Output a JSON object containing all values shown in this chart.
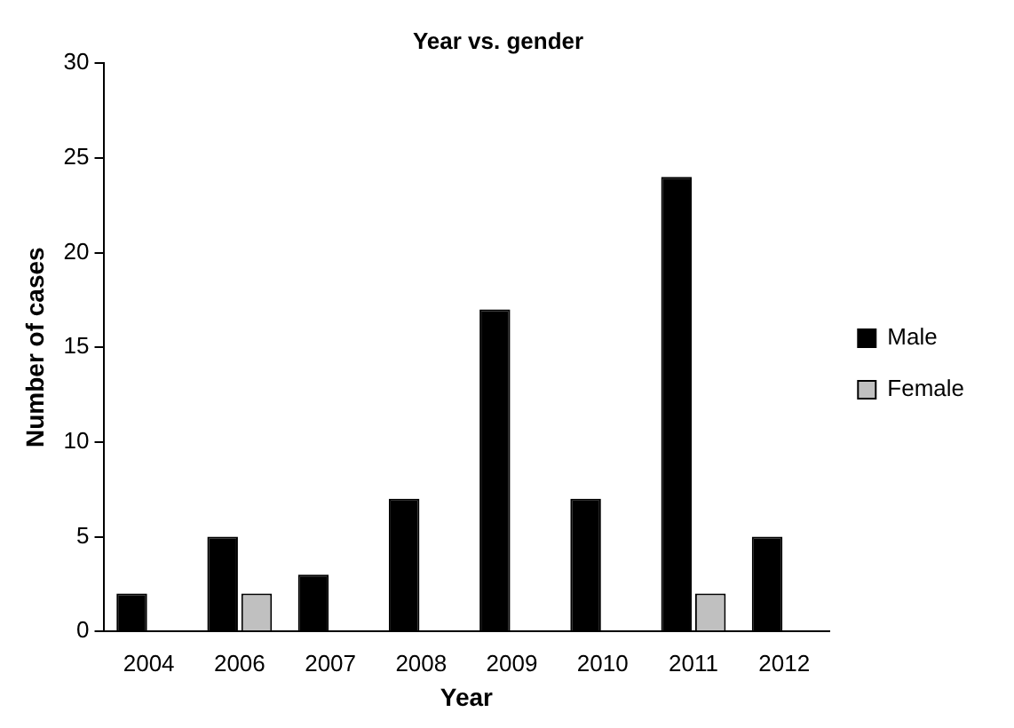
{
  "chart_data": {
    "type": "bar",
    "title": "Year vs. gender",
    "xlabel": "Year",
    "ylabel": "Number of cases",
    "categories": [
      "2004",
      "2006",
      "2007",
      "2008",
      "2009",
      "2010",
      "2011",
      "2012"
    ],
    "series": [
      {
        "name": "Male",
        "color": "#000000",
        "values": [
          2,
          5,
          3,
          7,
          17,
          7,
          24,
          5
        ]
      },
      {
        "name": "Female",
        "color": "#c0c0c0",
        "values": [
          0,
          2,
          0,
          0,
          0,
          0,
          2,
          0
        ]
      }
    ],
    "ylim": [
      0,
      30
    ],
    "yticks": [
      0,
      5,
      10,
      15,
      20,
      25,
      30
    ],
    "grid": false,
    "legend": "right"
  }
}
